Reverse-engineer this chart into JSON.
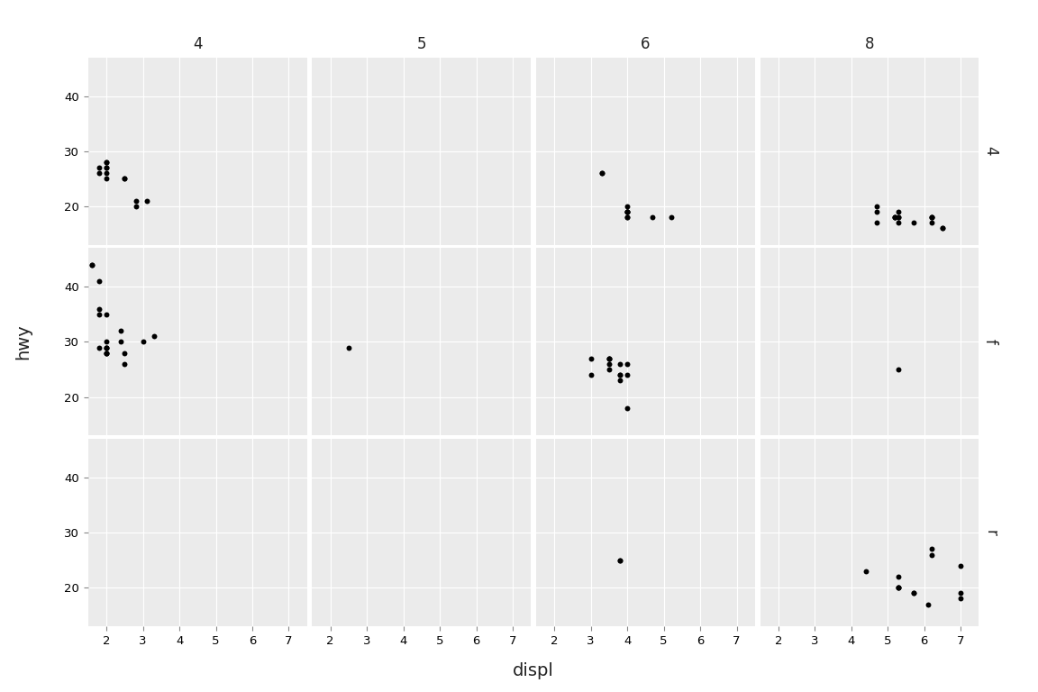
{
  "title_x": "displ",
  "title_y": "hwy",
  "col_labels": [
    "4",
    "5",
    "6",
    "8"
  ],
  "row_labels": [
    "4",
    "f",
    "r"
  ],
  "xlim": [
    1.5,
    7.5
  ],
  "ylim": [
    13,
    47
  ],
  "xticks": [
    2,
    3,
    4,
    5,
    6,
    7
  ],
  "yticks": [
    20,
    30,
    40
  ],
  "panel_bg": "#EBEBEB",
  "outer_bg": "#FFFFFF",
  "strip_bg": "#D3D3D3",
  "grid_color": "#FFFFFF",
  "point_color": "#000000",
  "point_size": 18,
  "data": {
    "4_4": {
      "displ": [
        1.8,
        1.8,
        2.0,
        2.0,
        2.0,
        2.0,
        2.0,
        2.0,
        2.5,
        2.5,
        2.8,
        2.8,
        3.1
      ],
      "hwy": [
        26,
        27,
        28,
        27,
        26,
        25,
        28,
        27,
        25,
        25,
        21,
        20,
        21
      ]
    },
    "5_4": {
      "displ": [],
      "hwy": []
    },
    "6_4": {
      "displ": [
        3.3,
        3.3,
        4.0,
        4.0,
        4.0,
        4.0,
        4.0,
        4.0,
        4.0,
        4.7,
        5.2
      ],
      "hwy": [
        26,
        26,
        20,
        19,
        19,
        19,
        19,
        18,
        18,
        18,
        18
      ]
    },
    "8_4": {
      "displ": [
        4.7,
        4.7,
        4.7,
        5.2,
        5.2,
        5.2,
        5.3,
        5.3,
        5.3,
        5.3,
        5.7,
        6.2,
        6.2,
        6.2,
        6.2,
        6.5,
        6.5
      ],
      "hwy": [
        19,
        20,
        17,
        18,
        18,
        18,
        18,
        18,
        17,
        19,
        17,
        18,
        17,
        18,
        18,
        16,
        16
      ]
    },
    "4_f": {
      "displ": [
        1.6,
        1.6,
        1.8,
        1.8,
        1.8,
        1.8,
        2.0,
        2.0,
        2.0,
        2.0,
        2.0,
        2.0,
        2.0,
        2.0,
        2.4,
        2.4,
        2.5,
        2.5,
        3.0,
        3.3
      ],
      "hwy": [
        44,
        44,
        41,
        29,
        35,
        36,
        29,
        28,
        29,
        29,
        30,
        35,
        28,
        28,
        32,
        30,
        28,
        26,
        30,
        31
      ]
    },
    "5_f": {
      "displ": [
        2.5
      ],
      "hwy": [
        29
      ]
    },
    "6_f": {
      "displ": [
        3.0,
        3.0,
        3.5,
        3.5,
        3.5,
        3.5,
        3.5,
        3.8,
        3.8,
        3.8,
        3.8,
        4.0,
        4.0,
        4.0
      ],
      "hwy": [
        27,
        24,
        27,
        27,
        27,
        26,
        25,
        23,
        24,
        24,
        26,
        26,
        24,
        18
      ]
    },
    "8_f": {
      "displ": [
        5.3
      ],
      "hwy": [
        25
      ]
    },
    "4_r": {
      "displ": [],
      "hwy": []
    },
    "5_r": {
      "displ": [],
      "hwy": []
    },
    "6_r": {
      "displ": [
        3.8,
        3.8
      ],
      "hwy": [
        25,
        25
      ]
    },
    "8_r": {
      "displ": [
        4.4,
        5.3,
        5.3,
        5.3,
        5.3,
        5.7,
        5.7,
        6.1,
        6.2,
        6.2,
        7.0,
        7.0,
        7.0
      ],
      "hwy": [
        23,
        22,
        20,
        20,
        20,
        19,
        19,
        17,
        27,
        26,
        19,
        18,
        24
      ]
    }
  }
}
